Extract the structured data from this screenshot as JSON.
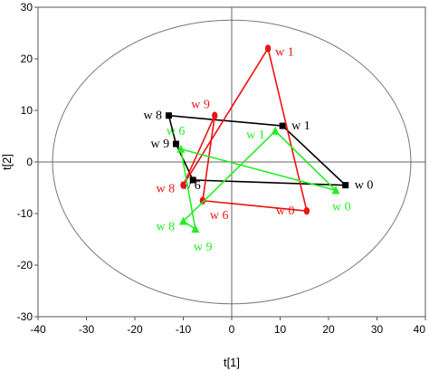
{
  "chart_data": {
    "type": "scatter",
    "title": "",
    "xlabel": "t[1]",
    "ylabel": "t[2]",
    "xlim": [
      -40,
      40
    ],
    "ylim": [
      -30,
      30
    ],
    "xticks": [
      -40,
      -30,
      -20,
      -10,
      0,
      10,
      20,
      30,
      40
    ],
    "yticks": [
      -30,
      -20,
      -10,
      0,
      10,
      20,
      30
    ],
    "grid": false,
    "zero_lines": true,
    "confidence_ellipse": {
      "cx": 0,
      "cy": 0,
      "rx": 37,
      "ry": 27.5
    },
    "series": [
      {
        "color": "#000000",
        "marker": "square",
        "connected": true,
        "points": [
          {
            "label": "w0",
            "x": 23.5,
            "y": -4.5
          },
          {
            "label": "w1",
            "x": 10.5,
            "y": 7
          },
          {
            "label": "w6",
            "x": -8,
            "y": -3.5
          },
          {
            "label": "w8",
            "x": -13,
            "y": 9
          },
          {
            "label": "w9",
            "x": -11.5,
            "y": 3.5
          }
        ]
      },
      {
        "color": "#ee1111",
        "marker": "circle",
        "connected": true,
        "points": [
          {
            "label": "w0",
            "x": 15.5,
            "y": -9.5
          },
          {
            "label": "w1",
            "x": 7.5,
            "y": 22
          },
          {
            "label": "w6",
            "x": -6,
            "y": -7.5
          },
          {
            "label": "w8",
            "x": -10,
            "y": -4.5
          },
          {
            "label": "w9",
            "x": -3.5,
            "y": 9
          }
        ]
      },
      {
        "color": "#22ee22",
        "marker": "triangle",
        "connected": true,
        "points": [
          {
            "label": "w0",
            "x": 21.5,
            "y": -5.5
          },
          {
            "label": "w1",
            "x": 9,
            "y": 6
          },
          {
            "label": "w6",
            "x": -10.5,
            "y": 2.5
          },
          {
            "label": "w8",
            "x": -10,
            "y": -11.5
          },
          {
            "label": "w9",
            "x": -7.5,
            "y": -13
          }
        ]
      }
    ]
  }
}
